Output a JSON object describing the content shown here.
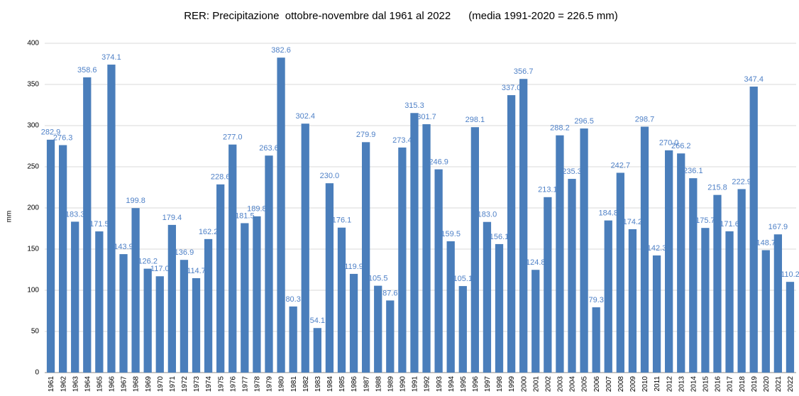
{
  "chart_data": {
    "type": "bar",
    "title": "RER: Precipitazione  ottobre-novembre dal 1961 al 2022      (media 1991-2020 = 226.5 mm)",
    "y_label": "mm",
    "categories": [
      "1961",
      "1962",
      "1963",
      "1964",
      "1965",
      "1966",
      "1967",
      "1968",
      "1969",
      "1970",
      "1971",
      "1972",
      "1973",
      "1974",
      "1975",
      "1976",
      "1977",
      "1978",
      "1979",
      "1980",
      "1981",
      "1982",
      "1983",
      "1984",
      "1985",
      "1986",
      "1987",
      "1988",
      "1989",
      "1990",
      "1991",
      "1992",
      "1993",
      "1994",
      "1995",
      "1996",
      "1997",
      "1998",
      "1999",
      "2000",
      "2001",
      "2002",
      "2003",
      "2004",
      "2005",
      "2006",
      "2007",
      "2008",
      "2009",
      "2010",
      "2011",
      "2012",
      "2013",
      "2014",
      "2015",
      "2016",
      "2017",
      "2018",
      "2019",
      "2020",
      "2021",
      "2022"
    ],
    "values": [
      282.9,
      276.3,
      183.3,
      358.6,
      171.5,
      374.1,
      143.9,
      199.8,
      126.2,
      117.0,
      179.4,
      136.9,
      114.7,
      162.2,
      228.6,
      277.0,
      181.5,
      189.8,
      263.6,
      382.6,
      80.3,
      302.4,
      54.1,
      230.0,
      176.1,
      119.9,
      279.9,
      105.5,
      87.6,
      273.4,
      315.3,
      301.7,
      246.9,
      159.5,
      105.1,
      298.1,
      183.0,
      156.1,
      337.0,
      356.7,
      124.8,
      213.1,
      288.2,
      235.3,
      296.5,
      79.3,
      184.8,
      242.7,
      174.2,
      298.7,
      142.3,
      270.0,
      266.2,
      236.1,
      175.7,
      215.8,
      171.6,
      222.9,
      347.4,
      148.7,
      167.9,
      110.2
    ],
    "value_labels": [
      "282.9",
      "276.3",
      "183.3",
      "358.6",
      "171.5",
      "374.1",
      "143.9",
      "199.8",
      "126.2",
      "117.0",
      "179.4",
      "136.9",
      "114.7",
      "162.2",
      "228.6",
      "277.0",
      "181.5",
      "189.8",
      "263.6",
      "382.6",
      "80.3",
      "302.4",
      "54.1",
      "230.0",
      "176.1",
      "119.9",
      "279.9",
      "105.5",
      "87.6",
      "273.4",
      "315.3",
      "301.7",
      "246.9",
      "159.5",
      "105.1",
      "298.1",
      "183.0",
      "156.1",
      "337.0",
      "356.7",
      "124.8",
      "213.1",
      "288.2",
      "235.3",
      "296.5",
      "79.3",
      "184.8",
      "242.7",
      "174.2",
      "298.7",
      "142.3",
      "270.0",
      "266.2",
      "236.1",
      "175.7",
      "215.8",
      "171.6",
      "222.9",
      "347.4",
      "148.7",
      "167.9",
      "110.2"
    ],
    "color": "#4a7ebb",
    "ylim": [
      0,
      400
    ],
    "yticks": [
      0,
      50,
      100,
      150,
      200,
      250,
      300,
      350,
      400
    ],
    "grid": true
  }
}
